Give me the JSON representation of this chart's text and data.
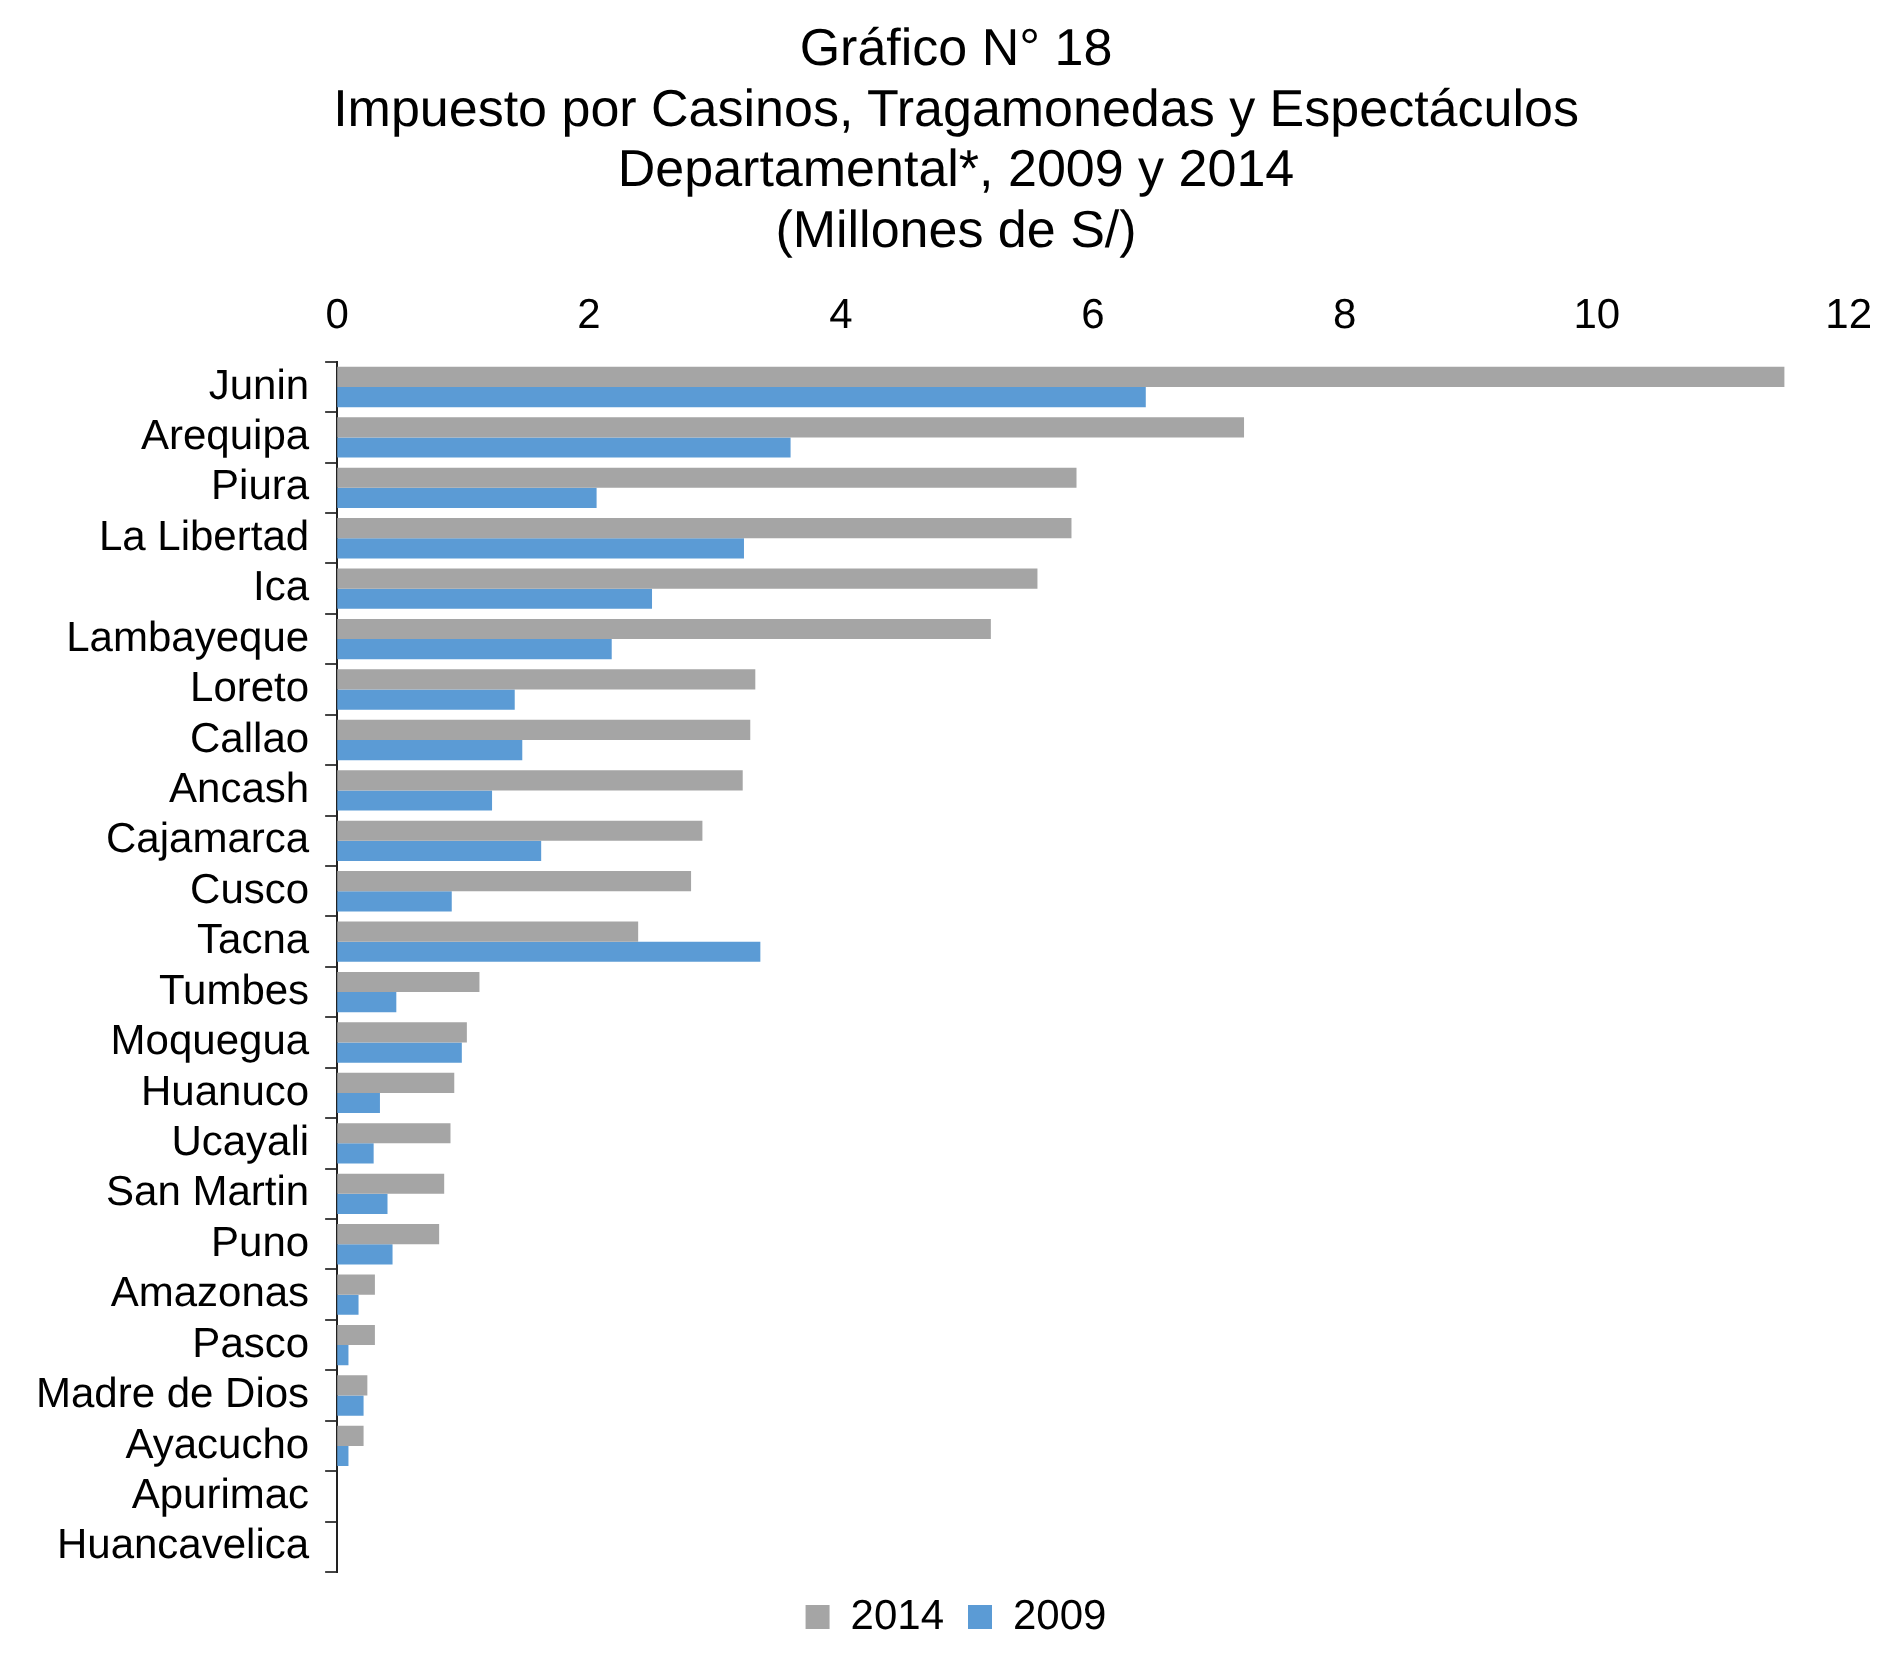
{
  "chart_data": {
    "type": "bar",
    "orientation": "horizontal",
    "title": "Gráfico N° 18",
    "subtitle": "Impuesto por Casinos, Tragamonedas y Espectáculos Departamental*, 2009 y 2014",
    "xlabel": "(Millones de S/)",
    "categories": [
      "Junin",
      "Arequipa",
      "Piura",
      "La Libertad",
      "Ica",
      "Lambayeque",
      "Loreto",
      "Callao",
      "Ancash",
      "Cajamarca",
      "Cusco",
      "Tacna",
      "Tumbes",
      "Moquegua",
      "Huanuco",
      "Ucayali",
      "San Martin",
      "Puno",
      "Amazonas",
      "Pasco",
      "Madre de Dios",
      "Ayacucho",
      "Apurimac",
      "Huancavelica"
    ],
    "series": [
      {
        "name": "2014",
        "color": "#a5a5a5",
        "values": [
          11.49,
          7.2,
          5.87,
          5.83,
          5.56,
          5.19,
          3.32,
          3.28,
          3.22,
          2.9,
          2.81,
          2.39,
          1.13,
          1.03,
          0.93,
          0.9,
          0.85,
          0.81,
          0.3,
          0.3,
          0.24,
          0.21,
          0,
          0
        ]
      },
      {
        "name": "2009",
        "color": "#5b9bd5",
        "values": [
          6.42,
          3.6,
          2.06,
          3.23,
          2.5,
          2.18,
          1.41,
          1.47,
          1.23,
          1.62,
          0.91,
          3.36,
          0.47,
          0.99,
          0.34,
          0.29,
          0.4,
          0.44,
          0.17,
          0.09,
          0.21,
          0.09,
          0,
          0
        ]
      }
    ],
    "xlim": [
      0,
      12
    ],
    "xticks": [
      0,
      2,
      4,
      6,
      8,
      10,
      12
    ],
    "legend": "bottom"
  }
}
